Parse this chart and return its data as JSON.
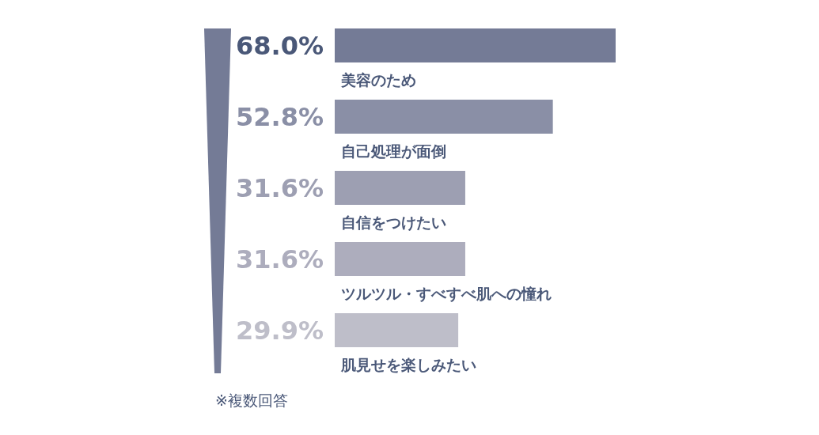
{
  "chart_data": {
    "type": "bar",
    "orientation": "horizontal",
    "categories": [
      "美容のため",
      "自己処理が面倒",
      "自信をつけたい",
      "ツルツル・すべすべ肌への憧れ",
      "肌見せを楽しみたい"
    ],
    "values": [
      68.0,
      52.8,
      31.6,
      31.6,
      29.9
    ],
    "value_labels": [
      "68.0%",
      "52.8%",
      "31.6%",
      "31.6%",
      "29.9%"
    ],
    "colors": [
      "#747b96",
      "#8a8fa6",
      "#9d9fb2",
      "#adadbd",
      "#bebec9"
    ],
    "annotations": [
      "※複数回答"
    ]
  }
}
